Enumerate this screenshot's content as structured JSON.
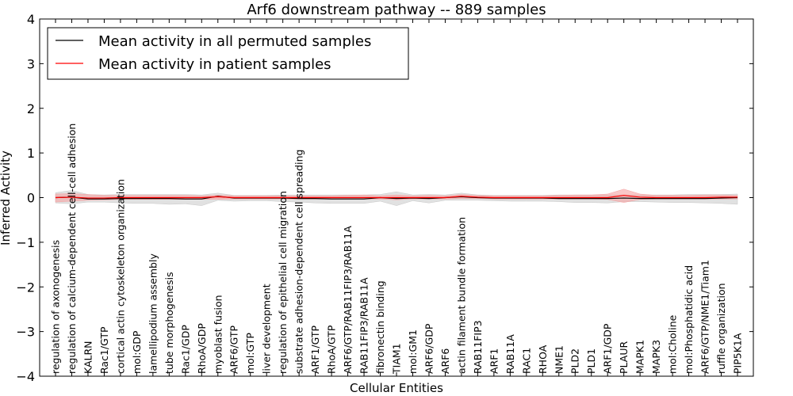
{
  "chart_data": {
    "type": "line",
    "title": "Arf6 downstream pathway -- 889 samples",
    "xlabel": "Cellular Entities",
    "ylabel": "Inferred Activity",
    "ylim": [
      -4,
      4
    ],
    "yticks": [
      -4,
      -3,
      -2,
      -1,
      0,
      1,
      2,
      3,
      4
    ],
    "ytick_labels": [
      "−4",
      "−3",
      "−2",
      "−1",
      "0",
      "1",
      "2",
      "3",
      "4"
    ],
    "legend_position": "upper-left",
    "categories": [
      "regulation of axonogenesis",
      "regulation of calcium-dependent cell-cell adhesion",
      "KALRN",
      "Rac1/GTP",
      "cortical actin cytoskeleton organization",
      "mol:GDP",
      "lamellipodium assembly",
      "tube morphogenesis",
      "Rac1/GDP",
      "RhoA/GDP",
      "myoblast fusion",
      "ARF6/GTP",
      "mol:GTP",
      "liver development",
      "regulation of epithelial cell migration",
      "substrate adhesion-dependent cell spreading",
      "ARF1/GTP",
      "RhoA/GTP",
      "ARF6/GTP/RAB11FIP3/RAB11A",
      "RAB11FIP3/RAB11A",
      "fibronectin binding",
      "TIAM1",
      "mol:GM1",
      "ARF6/GDP",
      "ARF6",
      "actin filament bundle formation",
      "RAB11FIP3",
      "ARF1",
      "RAB11A",
      "RAC1",
      "RHOA",
      "NME1",
      "PLD2",
      "PLD1",
      "ARF1/GDP",
      "PLAUR",
      "MAPK1",
      "MAPK3",
      "mol:Choline",
      "mol:Phosphatidic acid",
      "ARF6/GTP/NME1/Tiam1",
      "ruffle organization",
      "PIP5K1A"
    ],
    "series": [
      {
        "name": "Mean activity in all permuted samples",
        "color": "#000000",
        "band_color": "#c8c8c8",
        "values": [
          0.0,
          0.01,
          -0.03,
          -0.03,
          -0.02,
          -0.02,
          -0.02,
          -0.02,
          -0.03,
          -0.03,
          0.03,
          -0.01,
          -0.01,
          -0.01,
          -0.01,
          -0.02,
          -0.02,
          -0.03,
          -0.03,
          -0.03,
          0.0,
          -0.02,
          -0.01,
          -0.02,
          0.0,
          0.02,
          0.0,
          -0.01,
          -0.01,
          -0.01,
          -0.01,
          -0.02,
          -0.02,
          -0.02,
          -0.02,
          -0.01,
          -0.02,
          -0.02,
          -0.02,
          -0.02,
          -0.02,
          -0.01,
          0.0
        ],
        "lower": [
          -0.12,
          -0.14,
          -0.1,
          -0.1,
          -0.12,
          -0.13,
          -0.13,
          -0.15,
          -0.14,
          -0.18,
          -0.06,
          -0.08,
          -0.07,
          -0.07,
          -0.09,
          -0.1,
          -0.12,
          -0.13,
          -0.13,
          -0.13,
          -0.08,
          -0.18,
          -0.07,
          -0.12,
          -0.06,
          -0.06,
          -0.06,
          -0.07,
          -0.08,
          -0.08,
          -0.08,
          -0.09,
          -0.11,
          -0.11,
          -0.12,
          -0.09,
          -0.09,
          -0.1,
          -0.11,
          -0.11,
          -0.12,
          -0.13,
          -0.15
        ],
        "upper": [
          0.11,
          0.16,
          0.07,
          0.06,
          0.07,
          0.07,
          0.07,
          0.07,
          0.07,
          0.06,
          0.1,
          0.05,
          0.05,
          0.05,
          0.06,
          0.06,
          0.06,
          0.06,
          0.06,
          0.06,
          0.07,
          0.13,
          0.06,
          0.07,
          0.06,
          0.1,
          0.06,
          0.05,
          0.05,
          0.05,
          0.05,
          0.06,
          0.06,
          0.06,
          0.06,
          0.06,
          0.06,
          0.06,
          0.06,
          0.07,
          0.07,
          0.07,
          0.08
        ]
      },
      {
        "name": "Mean activity in patient samples",
        "color": "#ff0000",
        "band_color": "#f5a3a3",
        "values": [
          0.0,
          0.01,
          -0.01,
          -0.01,
          0.0,
          0.0,
          0.0,
          0.0,
          0.0,
          0.0,
          0.02,
          0.0,
          0.0,
          0.0,
          0.0,
          0.0,
          0.0,
          0.0,
          0.0,
          0.0,
          0.0,
          0.0,
          0.0,
          0.0,
          0.0,
          0.03,
          0.01,
          0.0,
          0.0,
          0.0,
          0.0,
          0.0,
          0.0,
          0.0,
          0.0,
          0.05,
          0.01,
          0.0,
          0.0,
          0.0,
          0.0,
          0.01,
          0.01
        ],
        "lower": [
          -0.1,
          -0.08,
          -0.06,
          -0.05,
          -0.04,
          -0.04,
          -0.04,
          -0.04,
          -0.04,
          -0.04,
          -0.04,
          -0.03,
          -0.03,
          -0.03,
          -0.03,
          -0.03,
          -0.03,
          -0.03,
          -0.03,
          -0.03,
          -0.03,
          -0.05,
          -0.03,
          -0.03,
          -0.03,
          -0.02,
          -0.02,
          -0.03,
          -0.03,
          -0.03,
          -0.03,
          -0.03,
          -0.03,
          -0.03,
          -0.04,
          -0.11,
          -0.04,
          -0.03,
          -0.03,
          -0.03,
          -0.03,
          -0.03,
          -0.03
        ],
        "upper": [
          0.08,
          0.09,
          0.07,
          0.05,
          0.05,
          0.05,
          0.05,
          0.05,
          0.05,
          0.04,
          0.06,
          0.04,
          0.04,
          0.04,
          0.04,
          0.04,
          0.04,
          0.04,
          0.05,
          0.06,
          0.04,
          0.06,
          0.04,
          0.05,
          0.04,
          0.07,
          0.05,
          0.04,
          0.04,
          0.04,
          0.04,
          0.05,
          0.06,
          0.06,
          0.08,
          0.19,
          0.08,
          0.05,
          0.05,
          0.05,
          0.06,
          0.06,
          0.05
        ]
      }
    ]
  }
}
